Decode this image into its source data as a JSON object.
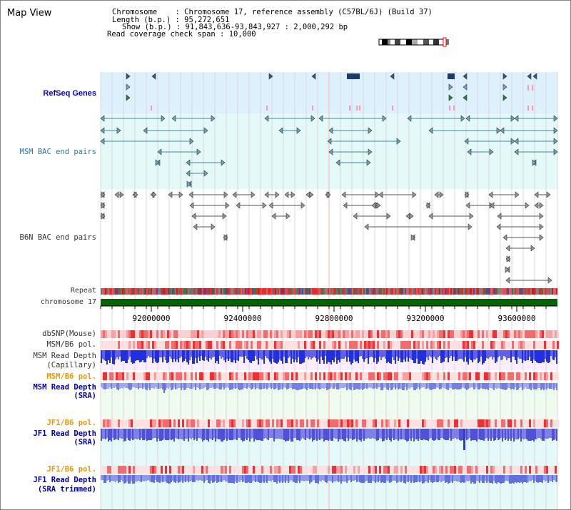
{
  "window": {
    "title": "Map View"
  },
  "info": {
    "chromosome_label": "Chromosome",
    "chromosome_value": "Chromosome 17, reference assembly (C57BL/6J) (Build 37)",
    "length_label": "Length (b.p.)",
    "length_value": "95,272,651",
    "show_label": "Show (b.p.)",
    "show_value": "91,843,636-93,843,927 : 2,000,292 bp",
    "coverage_label": "Read coverage check span",
    "coverage_value": "10,000"
  },
  "tracks": {
    "refseq": "RefSeq Genes",
    "msm_bac": "MSM BAC end pairs",
    "b6n_bac": "B6N BAC end pairs",
    "repeat": "Repeat",
    "chromosome": "chromosome 17",
    "dbsnp": "dbSNP(Mouse)",
    "msm_b6_pol_1": "MSM/B6 pol.",
    "msm_read_depth_cap_1": "MSM Read Depth",
    "msm_read_depth_cap_2": "(Capillary)",
    "msm_b6_pol_2": "MSM/B6 pol.",
    "msm_read_depth_sra_1": "MSM Read Depth",
    "msm_read_depth_sra_2": "(SRA)",
    "jf1_b6_pol_1": "JF1/B6 pol.",
    "jf1_read_depth_sra_1": "JF1 Read Depth",
    "jf1_read_depth_sra_2": "(SRA)",
    "jf1_b6_pol_2": "JF1/B6 pol.",
    "jf1_read_depth_trim_1": "JF1 Read Depth",
    "jf1_read_depth_trim_2": "(SRA trimmed)"
  },
  "axis": {
    "ticks": [
      "92000000",
      "92400000",
      "92800000",
      "93200000",
      "93600000"
    ]
  },
  "colors": {
    "refseq_bg": "#ddf0fb",
    "msm_bac_bg": "#e5f9f9",
    "b6n_bac_bg": "#ffffff",
    "read_depth_cap_bg": "#fbeefb",
    "read_depth_sra_bg": "#eefbee",
    "jf1_bg": "#e6f9f9",
    "label_refseq": "#0000cc",
    "label_msm_bac": "#2a7a9a",
    "label_b6n": "#333333",
    "label_orange": "#e89800",
    "label_blue": "#0000aa",
    "label_dark": "#333333",
    "chromosome_bar": "#006400"
  }
}
